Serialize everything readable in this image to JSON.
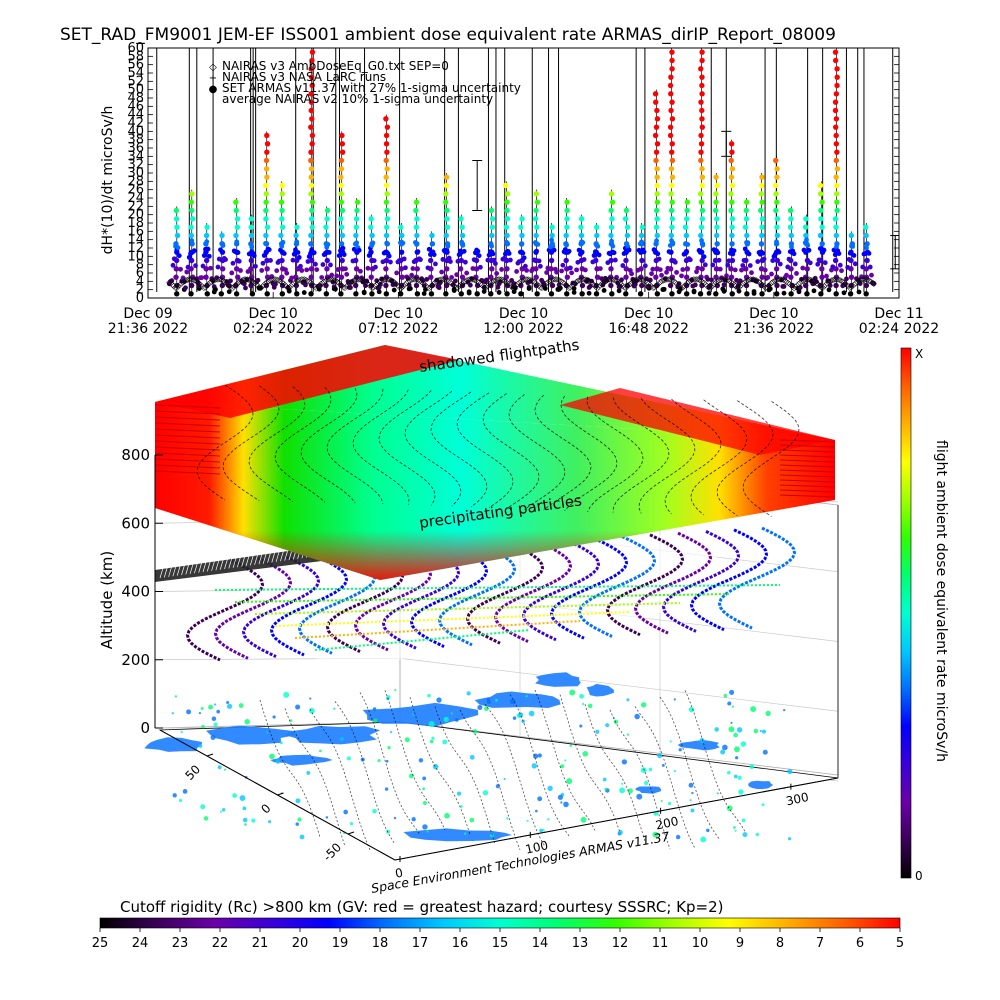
{
  "title": "SET_RAD_FM9001   JEM-EF ISS001 ambient dose equivalent rate ARMAS_dirIP_Report_08009",
  "chart_data": [
    {
      "type": "scatter",
      "ylabel": "dH*(10)/dt microSv/h",
      "ylim": [
        0,
        60
      ],
      "y_ticks": [
        "0",
        "2",
        "4",
        "6",
        "8",
        "10",
        "12",
        "14",
        "16",
        "18",
        "20",
        "22",
        "24",
        "26",
        "28",
        "30",
        "32",
        "34",
        "36",
        "38",
        "40",
        "42",
        "44",
        "46",
        "48",
        "50",
        "52",
        "54",
        "56",
        "58",
        "60"
      ],
      "x_ticks": [
        {
          "line1": "Dec 09",
          "line2": "21:36 2022"
        },
        {
          "line1": "Dec 10",
          "line2": "02:24 2022"
        },
        {
          "line1": "Dec 10",
          "line2": "07:12 2022"
        },
        {
          "line1": "Dec 10",
          "line2": "12:00 2022"
        },
        {
          "line1": "Dec 10",
          "line2": "16:48 2022"
        },
        {
          "line1": "Dec 10",
          "line2": "21:36 2022"
        },
        {
          "line1": "Dec 11",
          "line2": "02:24 2022"
        }
      ],
      "legend": [
        {
          "marker": "◇",
          "label": "NAIRAS v3 AmbDoseEq_G0.txt SEP=0"
        },
        {
          "marker": "+",
          "label": "NAIRAS v3 NASA LaRC runs"
        },
        {
          "marker": "●",
          "label": "SET ARMAS v11.37 with 27% 1-sigma uncertainty",
          "color": "#1a3cff"
        },
        {
          "marker": "",
          "label": "average NAIRAS v2 10% 1-sigma uncertainty"
        }
      ],
      "orbit_peaks": [
        22,
        26,
        18,
        16,
        24,
        20,
        40,
        28,
        18,
        62,
        22,
        40,
        24,
        20,
        44,
        18,
        24,
        16,
        30,
        20,
        12,
        22,
        28,
        20,
        26,
        18,
        24,
        20,
        18,
        26,
        22,
        18,
        50,
        62,
        24,
        62,
        30,
        38,
        24,
        30,
        34,
        22,
        20,
        28,
        60,
        16,
        18
      ],
      "tall_spike_times": [
        0.07,
        0.33,
        0.39,
        0.52,
        0.82,
        0.84,
        0.86,
        1.18,
        1.32,
        1.5,
        1.53,
        1.73,
        2.01,
        2.37,
        2.48,
        2.72,
        2.78,
        2.85,
        3.07,
        3.2,
        3.28,
        3.9,
        3.97,
        4.5,
        4.62,
        4.93,
        5.02,
        5.27,
        5.39,
        5.58,
        5.67,
        5.72,
        5.95
      ]
    },
    {
      "type": "heatmap",
      "zlabel": "Altitude (km)",
      "z_ticks": [
        "0",
        "200",
        "400",
        "600",
        "800"
      ],
      "x_ticks": [
        "0",
        "100",
        "200",
        "300"
      ],
      "y_ticks": [
        "50",
        "0",
        "-50"
      ],
      "surface_labels": [
        "shadowed flightpaths",
        "precipitating particles"
      ],
      "credit": "Space Environment Technologies ARMAS v11.37",
      "colorbar_label": "flight ambient dose equivalent rate microSv/h",
      "colorbar_ticks": [
        "X",
        "0"
      ]
    }
  ],
  "rigidity_bar": {
    "label": "Cutoff rigidity (Rc) >800 km (GV: red = greatest hazard; courtesy SSSRC; Kp=2)",
    "ticks": [
      "25",
      "24",
      "23",
      "22",
      "21",
      "20",
      "19",
      "18",
      "17",
      "16",
      "15",
      "14",
      "13",
      "12",
      "11",
      "10",
      "9",
      "8",
      "7",
      "6",
      "5"
    ]
  },
  "colors": {
    "rainbow": [
      "#000000",
      "#3b0058",
      "#6a00a8",
      "#3a00d8",
      "#0000ff",
      "#0070ff",
      "#00c8ff",
      "#00ffd0",
      "#00ff70",
      "#30ff00",
      "#a0ff00",
      "#ffff00",
      "#ffb000",
      "#ff6000",
      "#ff0000"
    ],
    "land": "#2080ff",
    "axis": "#000000"
  }
}
